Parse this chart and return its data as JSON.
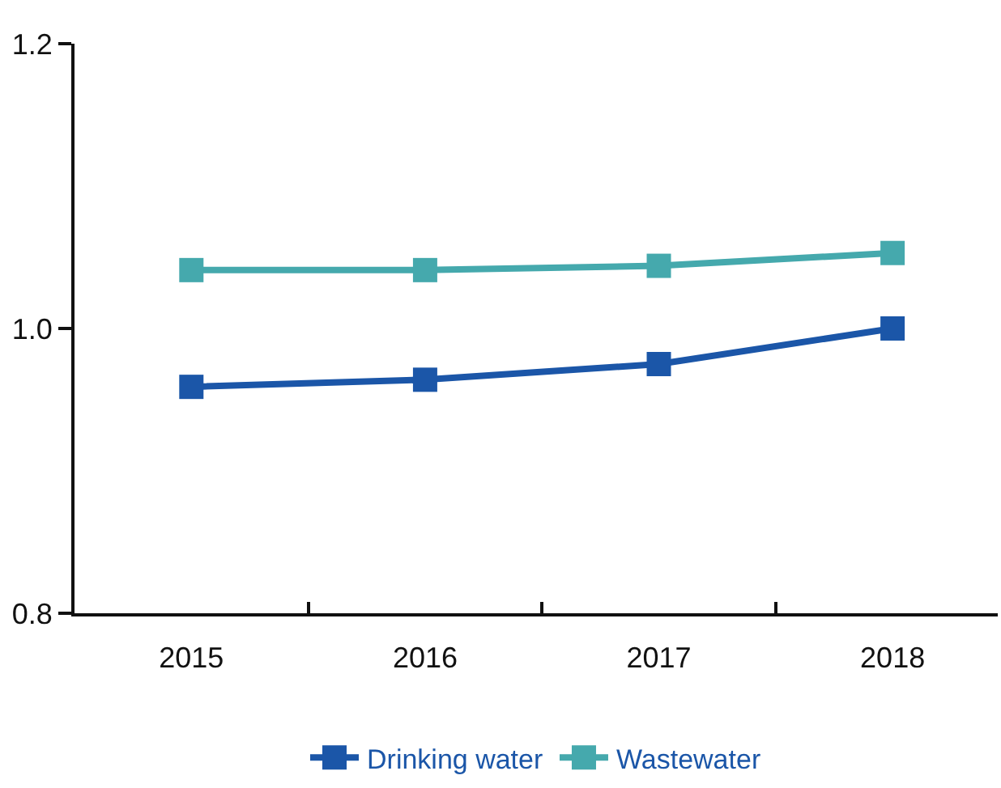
{
  "chart_data": {
    "type": "line",
    "categories": [
      "2015",
      "2016",
      "2017",
      "2018"
    ],
    "series": [
      {
        "name": "Drinking water",
        "color": "#1b56a8",
        "values": [
          0.959,
          0.964,
          0.975,
          1.0
        ]
      },
      {
        "name": "Wastewater",
        "color": "#45a9ad",
        "values": [
          1.041,
          1.041,
          1.044,
          1.053
        ]
      }
    ],
    "ylim": [
      0.8,
      1.2
    ],
    "yticks": [
      0.8,
      {
        "value": 1,
        "label": "1.0"
      },
      1.2
    ],
    "grid": false,
    "legend": "bottom",
    "marker": "square",
    "line_style": "solid"
  }
}
